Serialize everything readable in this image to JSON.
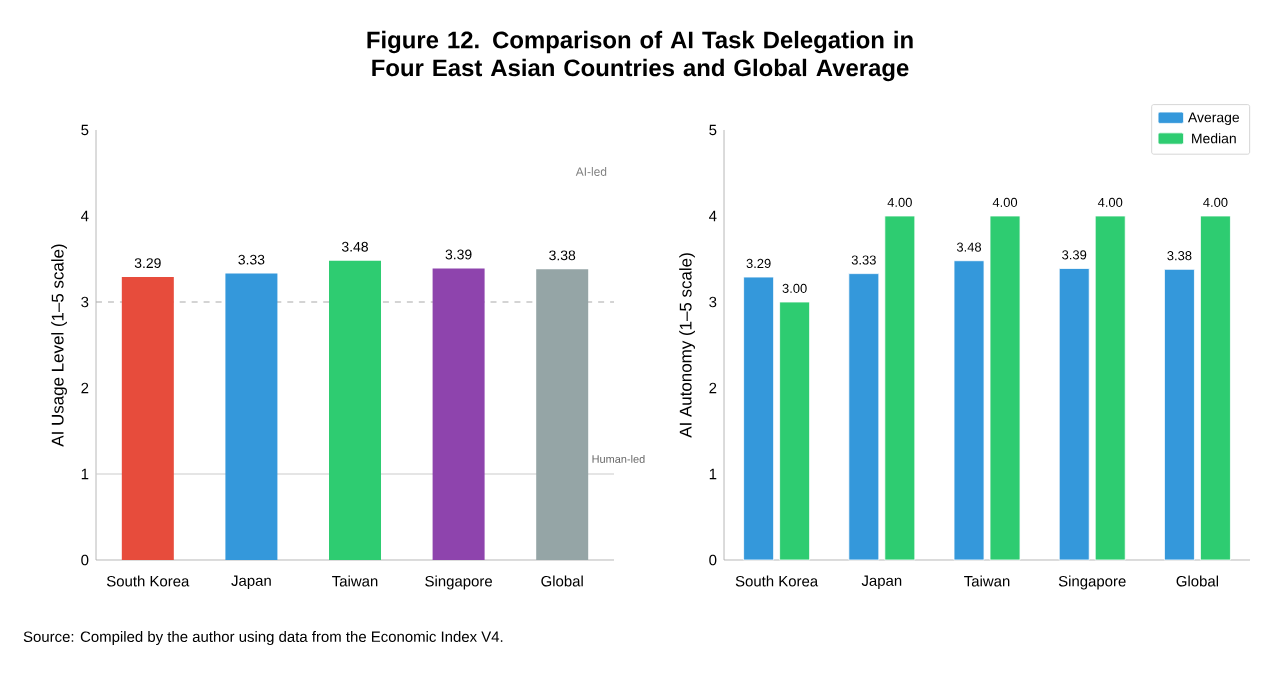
{
  "chart_data": [
    {
      "type": "bar",
      "title": "Figure 12. Comparison of AI Task Delegation in Four East Asian Countries and Global Average",
      "ylabel": "AI Usage Level (1–5 scale)",
      "categories": [
        "South Korea",
        "Japan",
        "Taiwan",
        "Singapore",
        "Global"
      ],
      "values": [
        3.29,
        3.33,
        3.48,
        3.39,
        3.38
      ],
      "colors": [
        "#e74c3c",
        "#3498db",
        "#2ecc71",
        "#8e44ad",
        "#95a5a6"
      ],
      "ylim": [
        0,
        5
      ],
      "yticks": [
        0,
        1,
        2,
        3,
        4,
        5
      ],
      "data_labels": true,
      "ref_lines": [
        {
          "axis": "y",
          "value": 3,
          "color": "#aaaaaa",
          "line_style": "dashed"
        },
        {
          "axis": "y",
          "value": 1,
          "color": "#cccccc",
          "line_style": "solid",
          "label": "Human-led"
        }
      ],
      "annotations": [
        "AI-led"
      ]
    },
    {
      "type": "bar",
      "ylabel": "AI Autonomy (1–5 scale)",
      "categories": [
        "South Korea",
        "Japan",
        "Taiwan",
        "Singapore",
        "Global"
      ],
      "series": [
        {
          "name": "Average",
          "color": "#3498db",
          "values": [
            3.29,
            3.33,
            3.48,
            3.39,
            3.38
          ],
          "value_labels": [
            "3.29",
            "3.33",
            "3.48",
            "3.39",
            "3.38"
          ]
        },
        {
          "name": "Median",
          "color": "#2ecc71",
          "values": [
            3.0,
            4.0,
            4.0,
            4.0,
            4.0
          ],
          "value_labels": [
            "3.00",
            "4.00",
            "4.00",
            "4.00",
            "4.00"
          ]
        }
      ],
      "ylim": [
        0,
        5
      ],
      "yticks": [
        0,
        1,
        2,
        3,
        4,
        5
      ],
      "legend": "top right",
      "annotations": [
        "Source: Compiled by the author using data from the Economic Index V4."
      ]
    }
  ]
}
